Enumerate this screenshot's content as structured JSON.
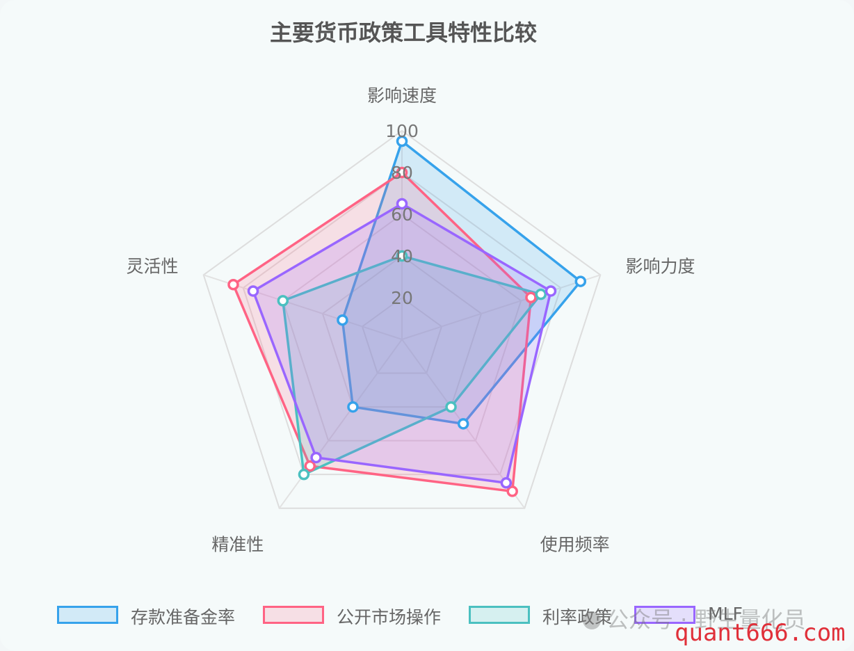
{
  "chart_data": {
    "type": "radar",
    "title": "主要货币政策工具特性比较",
    "axes": [
      "影响速度",
      "影响力度",
      "使用频率",
      "精准性",
      "灵活性"
    ],
    "r_range": [
      0,
      100
    ],
    "ticks": [
      20,
      40,
      60,
      80,
      100
    ],
    "grid": true,
    "legend_position": "bottom",
    "series": [
      {
        "name": "存款准备金率",
        "values": [
          95,
          90,
          50,
          40,
          30
        ],
        "color": "#36a2eb",
        "fill": "rgba(54,162,235,0.18)"
      },
      {
        "name": "公开市场操作",
        "values": [
          80,
          65,
          90,
          75,
          85
        ],
        "color": "#ff6384",
        "fill": "rgba(255,99,132,0.18)"
      },
      {
        "name": "利率政策",
        "values": [
          40,
          70,
          40,
          80,
          60
        ],
        "color": "#4bc0c0",
        "fill": "rgba(75,192,192,0.18)"
      },
      {
        "name": "MLF",
        "values": [
          65,
          75,
          85,
          70,
          75
        ],
        "color": "#9966ff",
        "fill": "rgba(153,102,255,0.18)"
      }
    ]
  },
  "watermark": {
    "account": "公众号 · 野生量化员",
    "site": "quant666.com"
  }
}
